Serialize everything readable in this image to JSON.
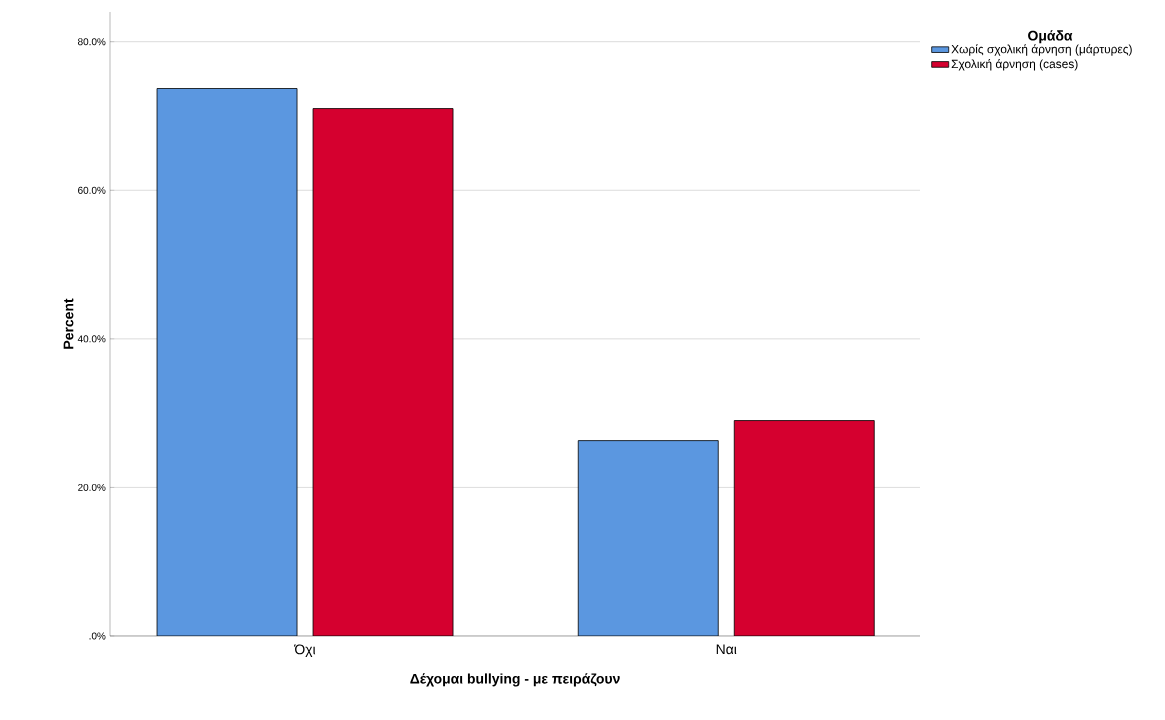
{
  "chart_data": {
    "type": "bar",
    "xlabel": "Δέχομαι bullying - με πειράζουν",
    "ylabel": "Percent",
    "legend_title": "Ομάδα",
    "categories": [
      "Όχι",
      "Ναι"
    ],
    "series": [
      {
        "name": "Χωρίς σχολική άρνηση (μάρτυρες)",
        "color": "#5b97e0",
        "values": [
          73.7,
          26.3
        ]
      },
      {
        "name": "Σχολική άρνηση (cases)",
        "color": "#d5002f",
        "values": [
          71.0,
          29.0
        ]
      }
    ],
    "ylim": [
      0,
      84
    ],
    "yticks": [
      {
        "value": 0,
        "label": ".0%"
      },
      {
        "value": 20,
        "label": "20.0%"
      },
      {
        "value": 40,
        "label": "40.0%"
      },
      {
        "value": 60,
        "label": "60.0%"
      },
      {
        "value": 80,
        "label": "80.0%"
      }
    ],
    "grid": "y",
    "legend": "top right"
  }
}
